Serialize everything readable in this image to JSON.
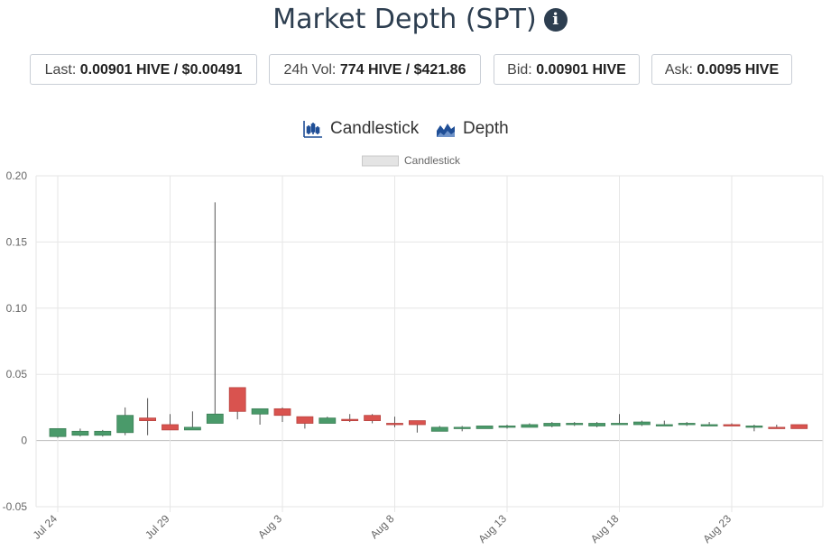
{
  "header": {
    "title": "Market Depth (SPT)",
    "info_icon": "info-icon"
  },
  "stats": [
    {
      "label": "Last:",
      "value": "0.00901 HIVE / $0.00491"
    },
    {
      "label": "24h Vol:",
      "value": "774 HIVE / $421.86"
    },
    {
      "label": "Bid:",
      "value": "0.00901 HIVE"
    },
    {
      "label": "Ask:",
      "value": "0.0095 HIVE"
    }
  ],
  "tabs": [
    {
      "label": "Candlestick",
      "icon": "candlestick-icon"
    },
    {
      "label": "Depth",
      "icon": "depth-chart-icon"
    }
  ],
  "colors": {
    "up": "#4a9a6a",
    "down": "#d9534f",
    "wick": "#555555",
    "grid": "#e6e6e6",
    "title": "#2d3e50",
    "tab_icon": "#1f4e96"
  },
  "chart_data": {
    "type": "candlestick",
    "legend": {
      "label": "Candlestick",
      "position": "top-center"
    },
    "ylim": [
      -0.05,
      0.2
    ],
    "yticks": [
      -0.05,
      0,
      0.05,
      0.1,
      0.15,
      0.2
    ],
    "ytick_labels": [
      "-0.05",
      "0",
      "0.05",
      "0.10",
      "0.15",
      "0.20"
    ],
    "xticks": [
      {
        "day": 0,
        "label": "Jul 24"
      },
      {
        "day": 5,
        "label": "Jul 29"
      },
      {
        "day": 10,
        "label": "Aug 3"
      },
      {
        "day": 15,
        "label": "Aug 8"
      },
      {
        "day": 20,
        "label": "Aug 13"
      },
      {
        "day": 25,
        "label": "Aug 18"
      },
      {
        "day": 30,
        "label": "Aug 23"
      }
    ],
    "grid": true,
    "candles": [
      {
        "date": "Jul 24",
        "open": 0.003,
        "high": 0.009,
        "low": 0.002,
        "close": 0.009
      },
      {
        "date": "Jul 25",
        "open": 0.004,
        "high": 0.009,
        "low": 0.003,
        "close": 0.007
      },
      {
        "date": "Jul 26",
        "open": 0.004,
        "high": 0.008,
        "low": 0.003,
        "close": 0.007
      },
      {
        "date": "Jul 27",
        "open": 0.006,
        "high": 0.025,
        "low": 0.004,
        "close": 0.019
      },
      {
        "date": "Jul 28",
        "open": 0.017,
        "high": 0.032,
        "low": 0.004,
        "close": 0.015
      },
      {
        "date": "Jul 29",
        "open": 0.012,
        "high": 0.02,
        "low": 0.008,
        "close": 0.008
      },
      {
        "date": "Jul 30",
        "open": 0.008,
        "high": 0.022,
        "low": 0.008,
        "close": 0.01
      },
      {
        "date": "Jul 31",
        "open": 0.013,
        "high": 0.18,
        "low": 0.013,
        "close": 0.02
      },
      {
        "date": "Aug 1",
        "open": 0.04,
        "high": 0.04,
        "low": 0.016,
        "close": 0.022
      },
      {
        "date": "Aug 2",
        "open": 0.02,
        "high": 0.024,
        "low": 0.012,
        "close": 0.024
      },
      {
        "date": "Aug 3",
        "open": 0.024,
        "high": 0.025,
        "low": 0.014,
        "close": 0.019
      },
      {
        "date": "Aug 4",
        "open": 0.018,
        "high": 0.018,
        "low": 0.009,
        "close": 0.013
      },
      {
        "date": "Aug 5",
        "open": 0.013,
        "high": 0.018,
        "low": 0.013,
        "close": 0.017
      },
      {
        "date": "Aug 6",
        "open": 0.016,
        "high": 0.02,
        "low": 0.014,
        "close": 0.015
      },
      {
        "date": "Aug 7",
        "open": 0.019,
        "high": 0.02,
        "low": 0.013,
        "close": 0.015
      },
      {
        "date": "Aug 8",
        "open": 0.013,
        "high": 0.018,
        "low": 0.01,
        "close": 0.012
      },
      {
        "date": "Aug 9",
        "open": 0.015,
        "high": 0.015,
        "low": 0.006,
        "close": 0.012
      },
      {
        "date": "Aug 10",
        "open": 0.007,
        "high": 0.011,
        "low": 0.007,
        "close": 0.01
      },
      {
        "date": "Aug 11",
        "open": 0.009,
        "high": 0.011,
        "low": 0.007,
        "close": 0.01
      },
      {
        "date": "Aug 12",
        "open": 0.009,
        "high": 0.011,
        "low": 0.009,
        "close": 0.011
      },
      {
        "date": "Aug 13",
        "open": 0.01,
        "high": 0.012,
        "low": 0.009,
        "close": 0.011
      },
      {
        "date": "Aug 14",
        "open": 0.01,
        "high": 0.013,
        "low": 0.01,
        "close": 0.012
      },
      {
        "date": "Aug 15",
        "open": 0.011,
        "high": 0.014,
        "low": 0.01,
        "close": 0.013
      },
      {
        "date": "Aug 16",
        "open": 0.012,
        "high": 0.014,
        "low": 0.011,
        "close": 0.013
      },
      {
        "date": "Aug 17",
        "open": 0.011,
        "high": 0.014,
        "low": 0.01,
        "close": 0.013
      },
      {
        "date": "Aug 18",
        "open": 0.013,
        "high": 0.02,
        "low": 0.012,
        "close": 0.013
      },
      {
        "date": "Aug 19",
        "open": 0.012,
        "high": 0.015,
        "low": 0.011,
        "close": 0.014
      },
      {
        "date": "Aug 20",
        "open": 0.012,
        "high": 0.015,
        "low": 0.011,
        "close": 0.012
      },
      {
        "date": "Aug 21",
        "open": 0.012,
        "high": 0.014,
        "low": 0.011,
        "close": 0.013
      },
      {
        "date": "Aug 22",
        "open": 0.012,
        "high": 0.014,
        "low": 0.011,
        "close": 0.012
      },
      {
        "date": "Aug 23",
        "open": 0.012,
        "high": 0.013,
        "low": 0.011,
        "close": 0.011
      },
      {
        "date": "Aug 24",
        "open": 0.011,
        "high": 0.012,
        "low": 0.007,
        "close": 0.011
      },
      {
        "date": "Aug 25",
        "open": 0.01,
        "high": 0.012,
        "low": 0.009,
        "close": 0.009
      },
      {
        "date": "Aug 26",
        "open": 0.012,
        "high": 0.012,
        "low": 0.009,
        "close": 0.009
      }
    ]
  }
}
